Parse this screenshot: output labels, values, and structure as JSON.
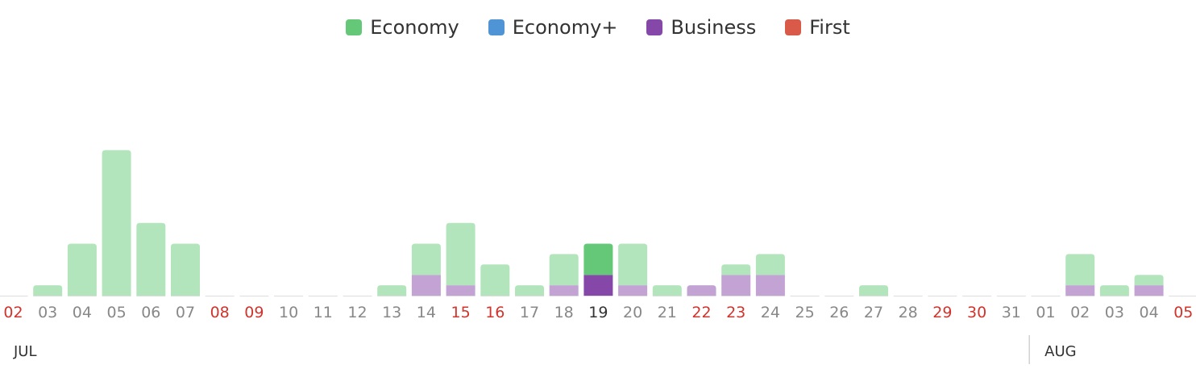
{
  "chart_data": {
    "type": "bar",
    "stacked": true,
    "series": [
      {
        "name": "Economy",
        "color": "#64C878",
        "faded": "#B2E5BC",
        "values": [
          0,
          1,
          5,
          14,
          7,
          5,
          0,
          0,
          0,
          0,
          0,
          1,
          3,
          6,
          3,
          1,
          3,
          3,
          4,
          1,
          0,
          1,
          2,
          0,
          0,
          1,
          0,
          0,
          0,
          0,
          0,
          3,
          1,
          1,
          0
        ]
      },
      {
        "name": "Economy+",
        "color": "#4F94D4",
        "faded": "#A7C9EA",
        "values": [
          0,
          0,
          0,
          0,
          0,
          0,
          0,
          0,
          0,
          0,
          0,
          0,
          0,
          0,
          0,
          0,
          0,
          0,
          0,
          0,
          0,
          0,
          0,
          0,
          0,
          0,
          0,
          0,
          0,
          0,
          0,
          0,
          0,
          0,
          0
        ]
      },
      {
        "name": "Business",
        "color": "#8548A8",
        "faded": "#C2A3D4",
        "values": [
          0,
          0,
          0,
          0,
          0,
          0,
          0,
          0,
          0,
          0,
          0,
          0,
          2,
          1,
          0,
          0,
          1,
          2,
          1,
          0,
          1,
          2,
          2,
          0,
          0,
          0,
          0,
          0,
          0,
          0,
          0,
          1,
          0,
          1,
          0
        ]
      },
      {
        "name": "First",
        "color": "#D95A48",
        "faded": "#ECACA3",
        "values": [
          0,
          0,
          0,
          0,
          0,
          0,
          0,
          0,
          0,
          0,
          0,
          0,
          0,
          0,
          0,
          0,
          0,
          0,
          0,
          0,
          0,
          0,
          0,
          0,
          0,
          0,
          0,
          0,
          0,
          0,
          0,
          0,
          0,
          0,
          0
        ]
      }
    ],
    "categories": [
      "02",
      "03",
      "04",
      "05",
      "06",
      "07",
      "08",
      "09",
      "10",
      "11",
      "12",
      "13",
      "14",
      "15",
      "16",
      "17",
      "18",
      "19",
      "20",
      "21",
      "22",
      "23",
      "24",
      "25",
      "26",
      "27",
      "28",
      "29",
      "30",
      "31",
      "01",
      "02",
      "03",
      "04",
      "05"
    ],
    "highlight_index": 17,
    "weekend_indices": [
      0,
      6,
      7,
      13,
      14,
      20,
      21,
      27,
      28,
      34
    ],
    "months": [
      {
        "label": "JUL",
        "start_index": 0
      },
      {
        "label": "AUG",
        "start_index": 30
      }
    ],
    "ylim": [
      0,
      14
    ],
    "legend_position": "top-center",
    "grid": false,
    "colors": {
      "tick": "#888888",
      "weekend_tick": "#D0342C",
      "highlight_tick": "#333333",
      "baseline": "#DDDDDD",
      "month": "#333333",
      "divider": "#BBBBBB"
    }
  }
}
